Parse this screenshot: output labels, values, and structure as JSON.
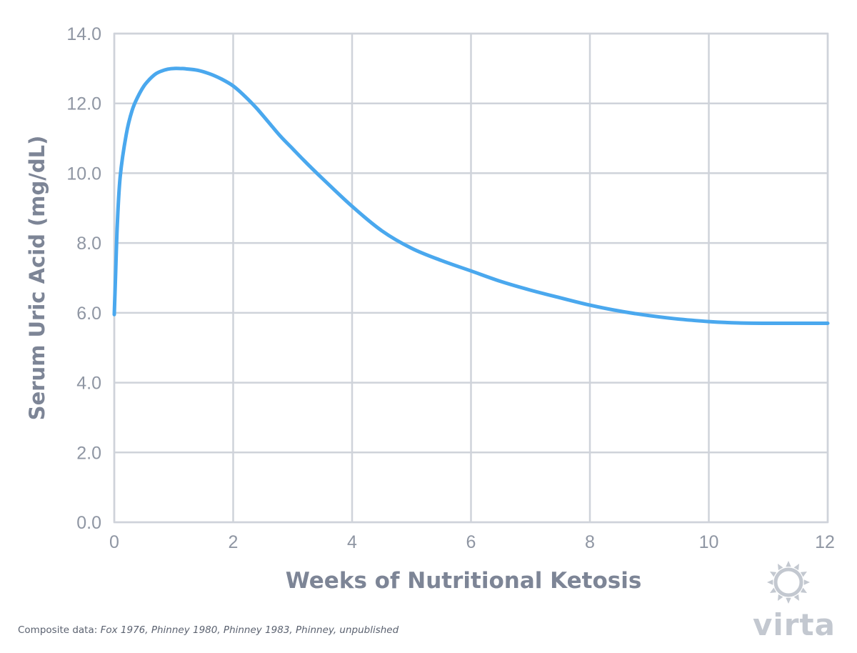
{
  "colors": {
    "series": "#4aa8ee",
    "grid": "#cfd3da",
    "text": "#8f96a3",
    "axis_title": "#7d8596",
    "logo": "#c3c8d0"
  },
  "chart_data": {
    "type": "line",
    "xlabel": "Weeks of Nutritional Ketosis",
    "ylabel": "Serum Uric Acid (mg/dL)",
    "xlim": [
      0,
      12
    ],
    "ylim": [
      0,
      14
    ],
    "x_ticks": [
      "0",
      "2",
      "4",
      "6",
      "8",
      "10",
      "12"
    ],
    "y_ticks": [
      "0.0",
      "2.0",
      "4.0",
      "6.0",
      "8.0",
      "10.0",
      "12.0",
      "14.0"
    ],
    "grid": true,
    "series": [
      {
        "color": "#4aa8ee",
        "x": [
          0,
          0.02,
          0.05,
          0.1,
          0.2,
          0.3,
          0.4,
          0.5,
          0.6,
          0.7,
          0.8,
          0.9,
          1.0,
          1.1,
          1.2,
          1.4,
          1.6,
          1.8,
          2.0,
          2.2,
          2.4,
          2.6,
          2.8,
          3.0,
          3.2,
          3.5,
          4.0,
          4.5,
          5.0,
          5.5,
          6.0,
          6.5,
          7.0,
          7.5,
          8.0,
          8.5,
          9.0,
          9.5,
          10.0,
          10.5,
          11.0,
          11.5,
          12.0
        ],
        "y": [
          5.95,
          7.0,
          8.5,
          9.9,
          11.1,
          11.8,
          12.2,
          12.5,
          12.7,
          12.85,
          12.93,
          12.98,
          13.0,
          13.0,
          12.99,
          12.95,
          12.85,
          12.7,
          12.5,
          12.2,
          11.85,
          11.45,
          11.05,
          10.7,
          10.35,
          9.85,
          9.05,
          8.35,
          7.85,
          7.5,
          7.2,
          6.9,
          6.65,
          6.43,
          6.22,
          6.05,
          5.92,
          5.82,
          5.75,
          5.71,
          5.7,
          5.7,
          5.7
        ]
      }
    ]
  },
  "footer": {
    "prefix": "Composite data: ",
    "sources": "Fox 1976, Phinney 1980, Phinney 1983, Phinney, unpublished"
  },
  "brand": {
    "name": "virta",
    "icon": "sun-icon"
  }
}
